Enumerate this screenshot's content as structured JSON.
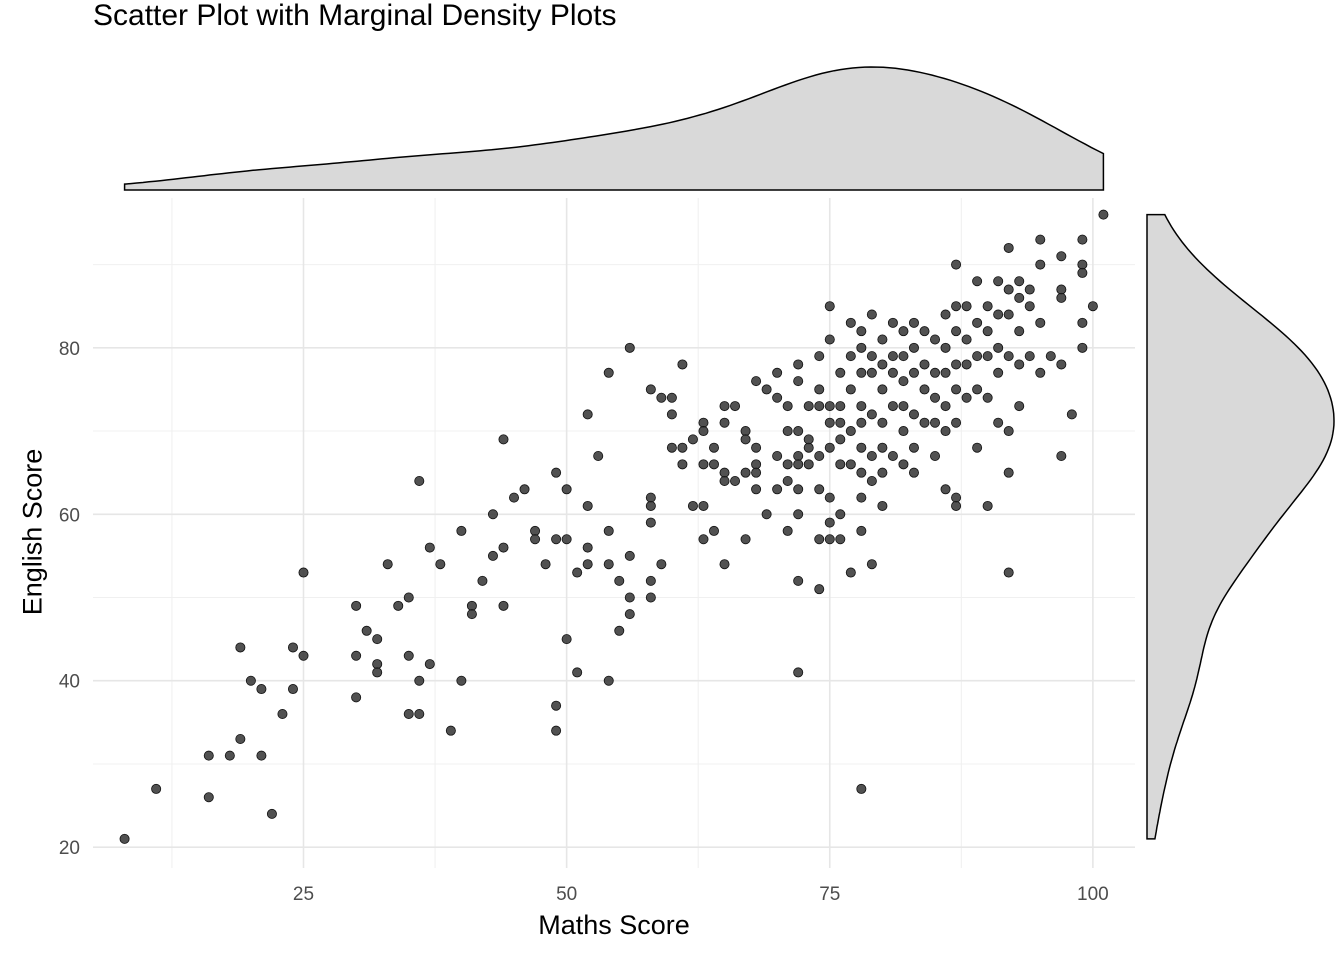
{
  "chart_data": {
    "type": "scatter",
    "title": "Scatter Plot with Marginal Density Plots",
    "xlabel": "Maths Score",
    "ylabel": "English Score",
    "xlim": [
      5,
      104
    ],
    "ylim": [
      17.5,
      98
    ],
    "x_ticks": [
      25,
      50,
      75,
      100
    ],
    "x_tick_labels": [
      "25",
      "50",
      "75",
      "100"
    ],
    "y_ticks": [
      20,
      40,
      60,
      80
    ],
    "y_tick_labels": [
      "20",
      "40",
      "60",
      "80"
    ],
    "grid": true,
    "legend": "none",
    "point_color": "#333333",
    "density_fill": "#d9d9d9",
    "points": [
      [
        8,
        21
      ],
      [
        11,
        27
      ],
      [
        16,
        31
      ],
      [
        16,
        26
      ],
      [
        18,
        31
      ],
      [
        19,
        44
      ],
      [
        19,
        33
      ],
      [
        20,
        40
      ],
      [
        21,
        39
      ],
      [
        21,
        31
      ],
      [
        22,
        24
      ],
      [
        23,
        36
      ],
      [
        24,
        44
      ],
      [
        24,
        39
      ],
      [
        25,
        53
      ],
      [
        25,
        43
      ],
      [
        30,
        49
      ],
      [
        30,
        43
      ],
      [
        30,
        38
      ],
      [
        31,
        46
      ],
      [
        32,
        45
      ],
      [
        32,
        42
      ],
      [
        32,
        41
      ],
      [
        33,
        54
      ],
      [
        34,
        49
      ],
      [
        35,
        50
      ],
      [
        35,
        43
      ],
      [
        35,
        36
      ],
      [
        36,
        64
      ],
      [
        36,
        40
      ],
      [
        36,
        36
      ],
      [
        37,
        56
      ],
      [
        37,
        42
      ],
      [
        38,
        54
      ],
      [
        39,
        34
      ],
      [
        40,
        58
      ],
      [
        40,
        40
      ],
      [
        41,
        49
      ],
      [
        41,
        48
      ],
      [
        42,
        52
      ],
      [
        43,
        60
      ],
      [
        43,
        55
      ],
      [
        44,
        69
      ],
      [
        44,
        56
      ],
      [
        44,
        49
      ],
      [
        45,
        62
      ],
      [
        46,
        63
      ],
      [
        47,
        58
      ],
      [
        47,
        57
      ],
      [
        48,
        54
      ],
      [
        49,
        65
      ],
      [
        49,
        57
      ],
      [
        49,
        37
      ],
      [
        49,
        34
      ],
      [
        50,
        63
      ],
      [
        50,
        57
      ],
      [
        50,
        45
      ],
      [
        51,
        53
      ],
      [
        51,
        41
      ],
      [
        52,
        72
      ],
      [
        52,
        61
      ],
      [
        52,
        56
      ],
      [
        52,
        54
      ],
      [
        53,
        67
      ],
      [
        54,
        77
      ],
      [
        54,
        58
      ],
      [
        54,
        54
      ],
      [
        54,
        40
      ],
      [
        55,
        52
      ],
      [
        55,
        46
      ],
      [
        56,
        80
      ],
      [
        56,
        55
      ],
      [
        56,
        50
      ],
      [
        56,
        48
      ],
      [
        58,
        75
      ],
      [
        58,
        62
      ],
      [
        58,
        61
      ],
      [
        58,
        59
      ],
      [
        58,
        52
      ],
      [
        58,
        50
      ],
      [
        59,
        74
      ],
      [
        59,
        54
      ],
      [
        60,
        74
      ],
      [
        60,
        72
      ],
      [
        60,
        68
      ],
      [
        61,
        78
      ],
      [
        61,
        68
      ],
      [
        61,
        66
      ],
      [
        62,
        69
      ],
      [
        62,
        61
      ],
      [
        63,
        71
      ],
      [
        63,
        70
      ],
      [
        63,
        66
      ],
      [
        63,
        61
      ],
      [
        63,
        57
      ],
      [
        64,
        68
      ],
      [
        64,
        66
      ],
      [
        64,
        58
      ],
      [
        65,
        73
      ],
      [
        65,
        71
      ],
      [
        65,
        65
      ],
      [
        65,
        64
      ],
      [
        65,
        54
      ],
      [
        66,
        73
      ],
      [
        66,
        64
      ],
      [
        67,
        70
      ],
      [
        67,
        69
      ],
      [
        67,
        65
      ],
      [
        67,
        57
      ],
      [
        68,
        76
      ],
      [
        68,
        68
      ],
      [
        68,
        66
      ],
      [
        68,
        65
      ],
      [
        68,
        63
      ],
      [
        69,
        75
      ],
      [
        69,
        60
      ],
      [
        70,
        77
      ],
      [
        70,
        74
      ],
      [
        70,
        67
      ],
      [
        70,
        63
      ],
      [
        71,
        73
      ],
      [
        71,
        70
      ],
      [
        71,
        66
      ],
      [
        71,
        64
      ],
      [
        71,
        58
      ],
      [
        72,
        78
      ],
      [
        72,
        76
      ],
      [
        72,
        70
      ],
      [
        72,
        67
      ],
      [
        72,
        66
      ],
      [
        72,
        63
      ],
      [
        72,
        60
      ],
      [
        72,
        52
      ],
      [
        72,
        41
      ],
      [
        73,
        73
      ],
      [
        73,
        69
      ],
      [
        73,
        68
      ],
      [
        73,
        66
      ],
      [
        74,
        79
      ],
      [
        74,
        75
      ],
      [
        74,
        73
      ],
      [
        74,
        67
      ],
      [
        74,
        63
      ],
      [
        74,
        57
      ],
      [
        74,
        51
      ],
      [
        75,
        85
      ],
      [
        75,
        81
      ],
      [
        75,
        73
      ],
      [
        75,
        71
      ],
      [
        75,
        68
      ],
      [
        75,
        62
      ],
      [
        75,
        59
      ],
      [
        75,
        57
      ],
      [
        76,
        77
      ],
      [
        76,
        73
      ],
      [
        76,
        71
      ],
      [
        76,
        69
      ],
      [
        76,
        66
      ],
      [
        76,
        60
      ],
      [
        76,
        57
      ],
      [
        77,
        83
      ],
      [
        77,
        79
      ],
      [
        77,
        75
      ],
      [
        77,
        70
      ],
      [
        77,
        66
      ],
      [
        77,
        53
      ],
      [
        78,
        82
      ],
      [
        78,
        80
      ],
      [
        78,
        77
      ],
      [
        78,
        73
      ],
      [
        78,
        71
      ],
      [
        78,
        68
      ],
      [
        78,
        65
      ],
      [
        78,
        62
      ],
      [
        78,
        58
      ],
      [
        78,
        27
      ],
      [
        79,
        84
      ],
      [
        79,
        79
      ],
      [
        79,
        77
      ],
      [
        79,
        72
      ],
      [
        79,
        67
      ],
      [
        79,
        64
      ],
      [
        79,
        54
      ],
      [
        80,
        81
      ],
      [
        80,
        78
      ],
      [
        80,
        75
      ],
      [
        80,
        71
      ],
      [
        80,
        68
      ],
      [
        80,
        65
      ],
      [
        80,
        61
      ],
      [
        81,
        83
      ],
      [
        81,
        79
      ],
      [
        81,
        77
      ],
      [
        81,
        73
      ],
      [
        81,
        67
      ],
      [
        82,
        82
      ],
      [
        82,
        79
      ],
      [
        82,
        76
      ],
      [
        82,
        73
      ],
      [
        82,
        70
      ],
      [
        82,
        66
      ],
      [
        83,
        83
      ],
      [
        83,
        80
      ],
      [
        83,
        77
      ],
      [
        83,
        72
      ],
      [
        83,
        68
      ],
      [
        83,
        65
      ],
      [
        84,
        82
      ],
      [
        84,
        78
      ],
      [
        84,
        75
      ],
      [
        84,
        71
      ],
      [
        85,
        81
      ],
      [
        85,
        77
      ],
      [
        85,
        74
      ],
      [
        85,
        71
      ],
      [
        85,
        67
      ],
      [
        86,
        84
      ],
      [
        86,
        80
      ],
      [
        86,
        77
      ],
      [
        86,
        73
      ],
      [
        86,
        70
      ],
      [
        86,
        63
      ],
      [
        87,
        90
      ],
      [
        87,
        85
      ],
      [
        87,
        82
      ],
      [
        87,
        78
      ],
      [
        87,
        75
      ],
      [
        87,
        71
      ],
      [
        87,
        62
      ],
      [
        87,
        61
      ],
      [
        88,
        85
      ],
      [
        88,
        81
      ],
      [
        88,
        78
      ],
      [
        88,
        74
      ],
      [
        89,
        88
      ],
      [
        89,
        83
      ],
      [
        89,
        79
      ],
      [
        89,
        75
      ],
      [
        89,
        68
      ],
      [
        90,
        85
      ],
      [
        90,
        82
      ],
      [
        90,
        79
      ],
      [
        90,
        74
      ],
      [
        90,
        61
      ],
      [
        91,
        88
      ],
      [
        91,
        84
      ],
      [
        91,
        80
      ],
      [
        91,
        77
      ],
      [
        91,
        71
      ],
      [
        92,
        92
      ],
      [
        92,
        87
      ],
      [
        92,
        84
      ],
      [
        92,
        79
      ],
      [
        92,
        70
      ],
      [
        92,
        65
      ],
      [
        92,
        53
      ],
      [
        93,
        88
      ],
      [
        93,
        86
      ],
      [
        93,
        82
      ],
      [
        93,
        78
      ],
      [
        93,
        73
      ],
      [
        94,
        87
      ],
      [
        94,
        85
      ],
      [
        94,
        79
      ],
      [
        95,
        93
      ],
      [
        95,
        90
      ],
      [
        95,
        83
      ],
      [
        95,
        77
      ],
      [
        96,
        79
      ],
      [
        97,
        91
      ],
      [
        97,
        87
      ],
      [
        97,
        86
      ],
      [
        97,
        78
      ],
      [
        97,
        67
      ],
      [
        98,
        72
      ],
      [
        99,
        93
      ],
      [
        99,
        90
      ],
      [
        99,
        89
      ],
      [
        99,
        83
      ],
      [
        99,
        80
      ],
      [
        100,
        85
      ],
      [
        101,
        96
      ]
    ]
  }
}
